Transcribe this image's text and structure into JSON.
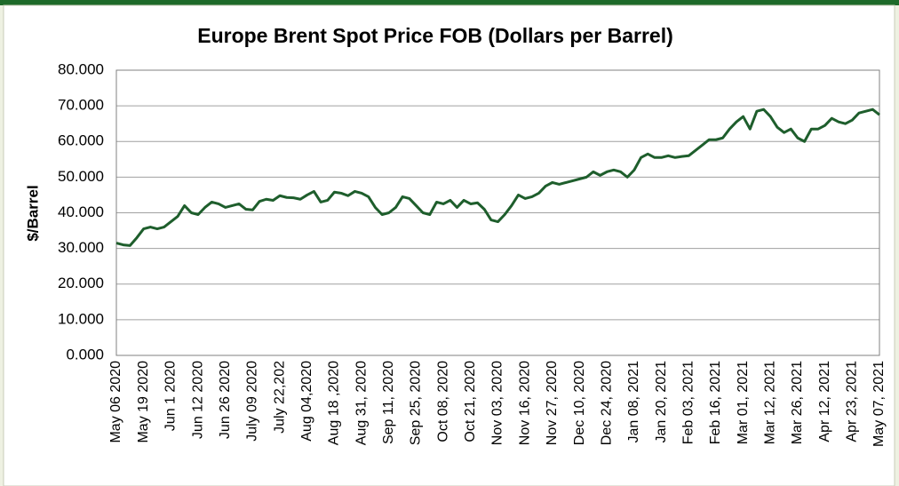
{
  "chart_data": {
    "type": "line",
    "title": "Europe Brent Spot Price FOB (Dollars per Barrel)",
    "y_label": "$/Barrel",
    "categories": [
      "May 06 2020",
      null,
      null,
      null,
      "May 19 2020",
      null,
      null,
      null,
      "Jun 1 2020",
      null,
      null,
      null,
      "Jun 12 2020",
      null,
      null,
      null,
      "Jun 26 2020",
      null,
      null,
      null,
      "July 09 2020",
      null,
      null,
      null,
      "July 22,202",
      null,
      null,
      null,
      "Aug 04,2020",
      null,
      null,
      null,
      "Aug 18 ,2020",
      null,
      null,
      null,
      "Aug 31, 2020",
      null,
      null,
      null,
      "Sep 11, 2020",
      null,
      null,
      null,
      "Sep 25, 2020",
      null,
      null,
      null,
      "Oct 08, 2020",
      null,
      null,
      null,
      "Oct 21, 2020",
      null,
      null,
      null,
      "Nov 03, 2020",
      null,
      null,
      null,
      "Nov 16, 2020",
      null,
      null,
      null,
      "Nov 27, 2020",
      null,
      null,
      null,
      "Dec 10, 2020",
      null,
      null,
      null,
      "Dec 24, 2020",
      null,
      null,
      null,
      "Jan 08, 2021",
      null,
      null,
      null,
      "Jan 20, 2021",
      null,
      null,
      null,
      "Feb 03, 2021",
      null,
      null,
      null,
      "Feb 16, 2021",
      null,
      null,
      null,
      "Mar 01, 2021",
      null,
      null,
      null,
      "Mar 12, 2021",
      null,
      null,
      null,
      "Mar 26, 2021",
      null,
      null,
      null,
      "Apr 12, 2021",
      null,
      null,
      null,
      "Apr 23, 2021",
      null,
      null,
      null,
      "May 07, 2021"
    ],
    "series": [
      {
        "name": "Brent",
        "color": "#1e5e2c",
        "values": [
          31.5,
          31,
          30.8,
          33,
          35.5,
          36,
          35.5,
          36,
          37.5,
          39,
          42,
          40,
          39.5,
          41.5,
          43,
          42.5,
          41.5,
          42,
          42.5,
          41,
          40.8,
          43.2,
          43.8,
          43.5,
          44.8,
          44.3,
          44.2,
          43.8,
          45,
          46,
          43,
          43.5,
          45.8,
          45.5,
          44.8,
          46,
          45.5,
          44.5,
          41.5,
          39.5,
          40,
          41.5,
          44.5,
          44,
          42,
          40,
          39.5,
          43,
          42.5,
          43.5,
          41.5,
          43.5,
          42.5,
          42.8,
          41,
          38,
          37.5,
          39.5,
          42,
          45,
          44,
          44.5,
          45.5,
          47.5,
          48.5,
          48,
          48.5,
          49,
          49.5,
          50,
          51.5,
          50.5,
          51.5,
          52,
          51.5,
          50,
          52,
          55.5,
          56.5,
          55.5,
          55.5,
          56,
          55.5,
          55.8,
          56,
          57.5,
          59,
          60.5,
          60.5,
          61,
          63.5,
          65.5,
          67,
          63.5,
          68.5,
          69,
          67,
          64,
          62.5,
          63.5,
          61,
          60,
          63.5,
          63.5,
          64.5,
          66.5,
          65.5,
          65,
          66,
          68,
          68.5,
          69,
          67.5
        ]
      }
    ],
    "ylim": [
      0,
      80
    ],
    "yticks": [
      {
        "value": 0,
        "label": "0.000"
      },
      {
        "value": 10,
        "label": "10.000"
      },
      {
        "value": 20,
        "label": "20.000"
      },
      {
        "value": 30,
        "label": "30.000"
      },
      {
        "value": 40,
        "label": "40.000"
      },
      {
        "value": 50,
        "label": "50.000"
      },
      {
        "value": 60,
        "label": "60.000"
      },
      {
        "value": 70,
        "label": "70.000"
      },
      {
        "value": 80,
        "label": "80.000"
      }
    ],
    "grid": true
  }
}
